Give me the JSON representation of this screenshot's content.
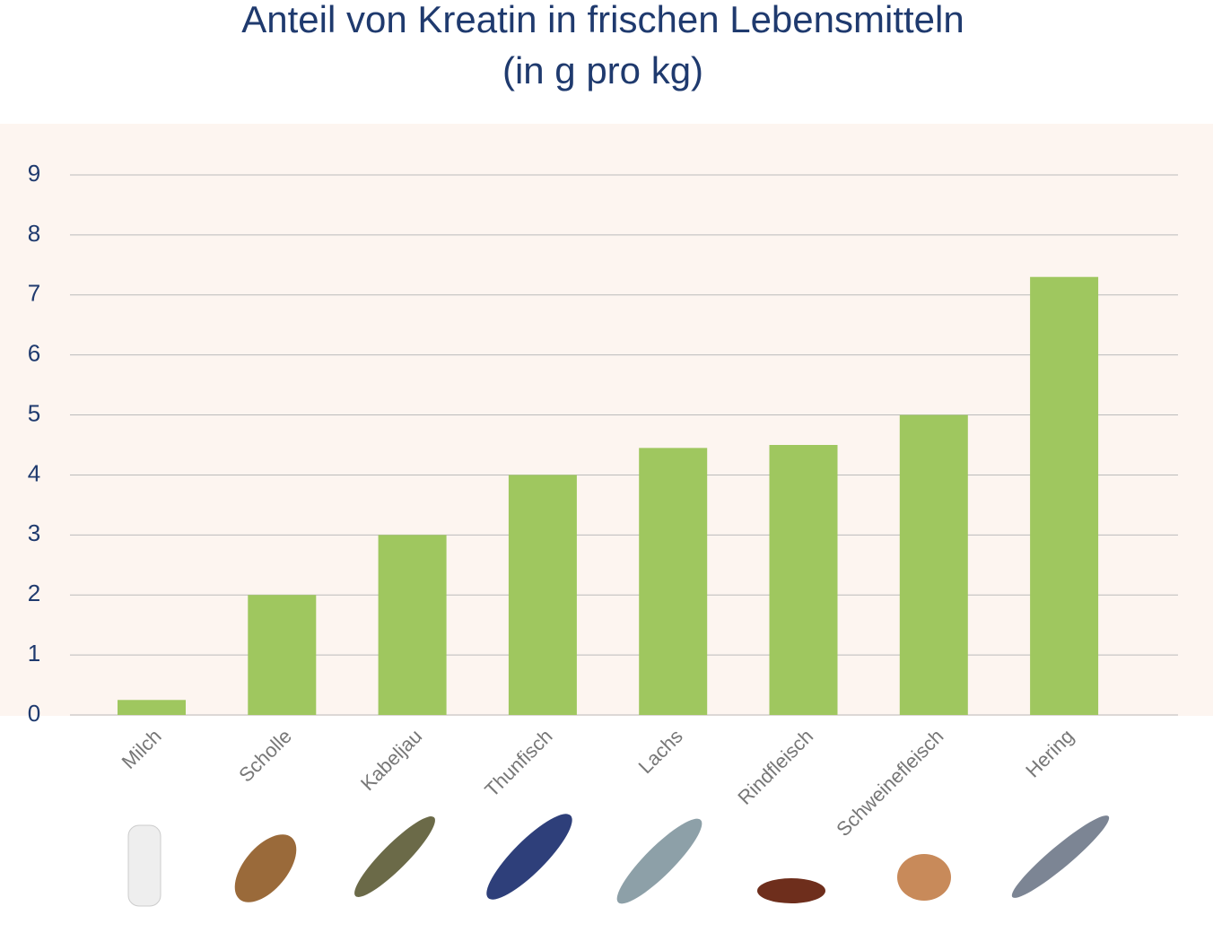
{
  "chart_data": {
    "type": "bar",
    "title": "Anteil von Kreatin in frischen Lebensmitteln",
    "subtitle": "(in g pro kg)",
    "categories": [
      "Milch",
      "Scholle",
      "Kabeljau",
      "Thunfisch",
      "Lachs",
      "Rindfleisch",
      "Schweinefleisch",
      "Hering"
    ],
    "values": [
      0.25,
      2,
      3,
      4,
      4.45,
      4.5,
      5,
      7.3
    ],
    "color": "#9fc75f",
    "ylim": [
      0,
      9
    ],
    "yticks": [
      0,
      1,
      2,
      3,
      4,
      5,
      6,
      7,
      8,
      9
    ],
    "grid": true
  }
}
